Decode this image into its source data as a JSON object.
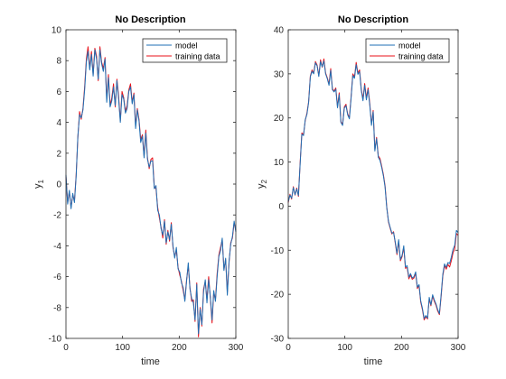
{
  "chart_data": [
    {
      "type": "line",
      "title": "No Description",
      "xlabel": "time",
      "ylabel": "y",
      "ylabel_subscript": "1",
      "xlim": [
        0,
        300
      ],
      "ylim": [
        -10,
        10
      ],
      "xticks": [
        0,
        100,
        200,
        300
      ],
      "yticks": [
        -10,
        -8,
        -6,
        -4,
        -2,
        0,
        2,
        4,
        6,
        8,
        10
      ],
      "legend_position": "top-right",
      "grid": false,
      "series": [
        {
          "name": "model",
          "color": "#1f6fb4",
          "x": [
            0,
            3,
            6,
            9,
            12,
            15,
            18,
            21,
            24,
            27,
            30,
            33,
            36,
            39,
            42,
            45,
            48,
            51,
            54,
            57,
            60,
            63,
            66,
            69,
            72,
            75,
            78,
            81,
            84,
            87,
            90,
            93,
            96,
            99,
            102,
            105,
            108,
            111,
            114,
            117,
            120,
            123,
            126,
            129,
            132,
            135,
            138,
            141,
            144,
            147,
            150,
            153,
            156,
            159,
            162,
            165,
            168,
            171,
            174,
            177,
            180,
            183,
            186,
            189,
            192,
            195,
            198,
            201,
            204,
            207,
            210,
            213,
            216,
            219,
            222,
            225,
            228,
            231,
            234,
            237,
            240,
            243,
            246,
            249,
            252,
            255,
            258,
            261,
            264,
            267,
            270,
            273,
            276,
            279,
            282,
            285,
            288,
            291,
            294,
            297,
            300
          ],
          "values": [
            0.6,
            -1.3,
            -0.4,
            -1.6,
            -0.6,
            -1.2,
            0.5,
            3.1,
            4.5,
            4.3,
            4.8,
            6.1,
            7.9,
            8.6,
            7.4,
            8.4,
            7.0,
            8.7,
            8.1,
            6.8,
            8.7,
            7.8,
            7.3,
            8.1,
            5.3,
            6.9,
            5.0,
            5.4,
            6.3,
            5.1,
            6.7,
            5.5,
            4.0,
            5.8,
            5.5,
            4.6,
            4.9,
            6.0,
            6.3,
            5.2,
            5.8,
            3.6,
            4.8,
            4.1,
            2.7,
            3.1,
            1.7,
            3.3,
            1.6,
            1.1,
            1.5,
            1.5,
            -0.3,
            -0.1,
            -1.7,
            -2.0,
            -2.9,
            -3.3,
            -2.4,
            -3.8,
            -3.1,
            -3.6,
            -2.6,
            -4.0,
            -4.8,
            -4.1,
            -5.5,
            -5.7,
            -6.4,
            -6.7,
            -7.6,
            -6.3,
            -5.1,
            -6.8,
            -7.4,
            -7.7,
            -8.8,
            -6.5,
            -9.7,
            -8.1,
            -9.1,
            -7.0,
            -6.2,
            -7.7,
            -6.2,
            -7.3,
            -8.8,
            -6.9,
            -7.6,
            -6.0,
            -4.7,
            -4.3,
            -3.5,
            -5.6,
            -4.8,
            -7.2,
            -5.0,
            -3.9,
            -3.4,
            -2.4,
            -3.1
          ]
        },
        {
          "name": "training data",
          "color": "#e8111a",
          "x": [
            0,
            3,
            6,
            9,
            12,
            15,
            18,
            21,
            24,
            27,
            30,
            33,
            36,
            39,
            42,
            45,
            48,
            51,
            54,
            57,
            60,
            63,
            66,
            69,
            72,
            75,
            78,
            81,
            84,
            87,
            90,
            93,
            96,
            99,
            102,
            105,
            108,
            111,
            114,
            117,
            120,
            123,
            126,
            129,
            132,
            135,
            138,
            141,
            144,
            147,
            150,
            153,
            156,
            159,
            162,
            165,
            168,
            171,
            174,
            177,
            180,
            183,
            186,
            189,
            192,
            195,
            198,
            201,
            204,
            207,
            210,
            213,
            216,
            219,
            222,
            225,
            228,
            231,
            234,
            237,
            240,
            243,
            246,
            249,
            252,
            255,
            258,
            261,
            264,
            267,
            270,
            273,
            276,
            279,
            282,
            285,
            288,
            291,
            294,
            297,
            300
          ],
          "values": [
            0.5,
            -1.2,
            -0.5,
            -1.5,
            -0.7,
            -1.1,
            0.6,
            3.0,
            4.7,
            4.2,
            4.9,
            6.3,
            8.1,
            8.9,
            7.5,
            8.6,
            7.1,
            8.8,
            8.3,
            6.7,
            8.9,
            7.9,
            7.5,
            8.2,
            5.5,
            7.1,
            5.1,
            5.6,
            6.5,
            5.0,
            6.8,
            5.7,
            4.1,
            6.0,
            5.6,
            4.7,
            5.1,
            6.1,
            6.5,
            5.3,
            5.9,
            3.8,
            4.9,
            4.2,
            2.9,
            3.2,
            1.8,
            3.5,
            1.7,
            1.0,
            1.6,
            1.7,
            -0.2,
            -0.3,
            -1.5,
            -2.2,
            -2.8,
            -3.5,
            -2.3,
            -3.9,
            -3.0,
            -3.7,
            -2.5,
            -4.1,
            -4.7,
            -4.3,
            -5.4,
            -5.9,
            -6.3,
            -6.9,
            -7.5,
            -6.2,
            -5.3,
            -6.7,
            -7.6,
            -7.5,
            -8.9,
            -6.4,
            -9.9,
            -8.0,
            -9.2,
            -6.8,
            -6.3,
            -7.5,
            -6.0,
            -7.4,
            -9.0,
            -7.0,
            -7.5,
            -5.8,
            -4.6,
            -4.1,
            -3.6,
            -5.5,
            -4.9,
            -7.0,
            -5.1,
            -3.8,
            -3.5,
            -2.5,
            -3.0
          ]
        }
      ]
    },
    {
      "type": "line",
      "title": "No Description",
      "xlabel": "time",
      "ylabel": "y",
      "ylabel_subscript": "2",
      "xlim": [
        0,
        300
      ],
      "ylim": [
        -30,
        40
      ],
      "xticks": [
        0,
        100,
        200,
        300
      ],
      "yticks": [
        -30,
        -20,
        -10,
        0,
        10,
        20,
        30,
        40
      ],
      "legend_position": "top-right",
      "grid": false,
      "series": [
        {
          "name": "model",
          "color": "#1f6fb4",
          "x": [
            0,
            3,
            6,
            9,
            12,
            15,
            18,
            21,
            24,
            27,
            30,
            33,
            36,
            39,
            42,
            45,
            48,
            51,
            54,
            57,
            60,
            63,
            66,
            69,
            72,
            75,
            78,
            81,
            84,
            87,
            90,
            93,
            96,
            99,
            102,
            105,
            108,
            111,
            114,
            117,
            120,
            123,
            126,
            129,
            132,
            135,
            138,
            141,
            144,
            147,
            150,
            153,
            156,
            159,
            162,
            165,
            168,
            171,
            174,
            177,
            180,
            183,
            186,
            189,
            192,
            195,
            198,
            201,
            204,
            207,
            210,
            213,
            216,
            219,
            222,
            225,
            228,
            231,
            234,
            237,
            240,
            243,
            246,
            249,
            252,
            255,
            258,
            261,
            264,
            267,
            270,
            273,
            276,
            279,
            282,
            285,
            288,
            291,
            294,
            297,
            300
          ],
          "values": [
            1.0,
            2.5,
            1.8,
            4.2,
            2.6,
            3.9,
            2.4,
            9.5,
            16.3,
            16.0,
            19.6,
            20.8,
            23.5,
            29.3,
            30.6,
            30.0,
            32.5,
            31.8,
            29.4,
            32.8,
            31.6,
            32.9,
            30.0,
            28.9,
            27.4,
            30.8,
            26.4,
            25.9,
            26.5,
            22.3,
            25.3,
            19.0,
            18.3,
            22.2,
            22.8,
            20.7,
            19.8,
            24.5,
            29.6,
            29.0,
            32.1,
            29.9,
            30.5,
            26.2,
            23.9,
            27.4,
            24.1,
            26.4,
            22.9,
            18.3,
            21.4,
            12.5,
            15.3,
            11.1,
            10.4,
            8.8,
            6.9,
            4.3,
            -0.4,
            -3.4,
            -4.8,
            -6.1,
            -6.0,
            -8.1,
            -10.7,
            -7.6,
            -12.1,
            -11.2,
            -9.0,
            -13.8,
            -13.5,
            -16.1,
            -15.3,
            -16.3,
            -16.0,
            -14.9,
            -18.4,
            -17.8,
            -21.5,
            -23.2,
            -25.5,
            -24.8,
            -25.4,
            -20.7,
            -22.4,
            -20.1,
            -21.3,
            -22.2,
            -23.5,
            -24.4,
            -20.1,
            -15.4,
            -13.1,
            -13.9,
            -12.8,
            -13.0,
            -11.6,
            -9.8,
            -8.9,
            -5.5,
            -6.0
          ]
        },
        {
          "name": "training data",
          "color": "#e8111a",
          "x": [
            0,
            3,
            6,
            9,
            12,
            15,
            18,
            21,
            24,
            27,
            30,
            33,
            36,
            39,
            42,
            45,
            48,
            51,
            54,
            57,
            60,
            63,
            66,
            69,
            72,
            75,
            78,
            81,
            84,
            87,
            90,
            93,
            96,
            99,
            102,
            105,
            108,
            111,
            114,
            117,
            120,
            123,
            126,
            129,
            132,
            135,
            138,
            141,
            144,
            147,
            150,
            153,
            156,
            159,
            162,
            165,
            168,
            171,
            174,
            177,
            180,
            183,
            186,
            189,
            192,
            195,
            198,
            201,
            204,
            207,
            210,
            213,
            216,
            219,
            222,
            225,
            228,
            231,
            234,
            237,
            240,
            243,
            246,
            249,
            252,
            255,
            258,
            261,
            264,
            267,
            270,
            273,
            276,
            279,
            282,
            285,
            288,
            291,
            294,
            297,
            300
          ],
          "values": [
            0.8,
            2.7,
            1.6,
            4.4,
            2.5,
            4.1,
            2.2,
            9.8,
            16.6,
            16.2,
            19.4,
            21.1,
            23.7,
            29.5,
            30.9,
            30.2,
            32.8,
            32.0,
            29.6,
            33.2,
            31.5,
            33.4,
            30.2,
            29.1,
            27.7,
            31.2,
            26.6,
            26.1,
            26.8,
            22.6,
            25.7,
            19.2,
            18.5,
            22.5,
            23.1,
            20.9,
            20.1,
            24.8,
            30.0,
            29.3,
            32.6,
            30.2,
            30.9,
            26.5,
            24.3,
            27.8,
            24.5,
            26.8,
            23.3,
            18.6,
            21.7,
            12.8,
            15.6,
            11.4,
            10.8,
            9.1,
            7.2,
            4.6,
            -0.2,
            -3.6,
            -5.0,
            -6.3,
            -5.8,
            -8.4,
            -11.0,
            -7.9,
            -12.4,
            -11.5,
            -9.3,
            -14.1,
            -13.9,
            -16.5,
            -15.6,
            -16.6,
            -16.3,
            -15.2,
            -18.7,
            -18.0,
            -21.8,
            -23.5,
            -25.8,
            -25.1,
            -25.6,
            -21.0,
            -22.6,
            -20.4,
            -21.6,
            -22.5,
            -23.8,
            -24.6,
            -20.5,
            -15.8,
            -13.5,
            -14.3,
            -13.2,
            -13.8,
            -12.4,
            -10.6,
            -9.7,
            -6.2,
            -6.6
          ]
        }
      ]
    }
  ]
}
